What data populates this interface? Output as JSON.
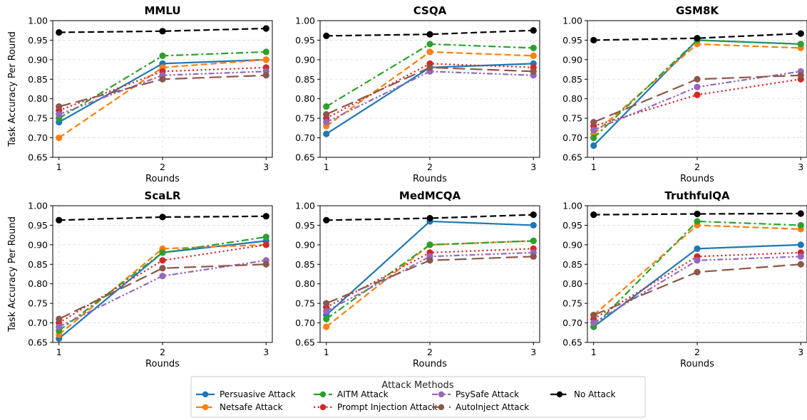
{
  "figure": {
    "legend_title": "Attack Methods",
    "legend_placement": "bottom-center"
  },
  "chart_data": [
    {
      "type": "line",
      "title": "MMLU",
      "xlabel": "Rounds",
      "ylabel": "Task Accuracy Per Round",
      "x": [
        1,
        2,
        3
      ],
      "ylim": [
        0.65,
        1.0
      ],
      "yticks": [
        "0.65",
        "0.70",
        "0.75",
        "0.80",
        "0.85",
        "0.90",
        "0.95",
        "1.00"
      ],
      "grid": true,
      "series": [
        {
          "name": "Persuasive Attack",
          "values": [
            0.74,
            0.89,
            0.9
          ]
        },
        {
          "name": "Netsafe Attack",
          "values": [
            0.7,
            0.88,
            0.9
          ]
        },
        {
          "name": "AITM Attack",
          "values": [
            0.75,
            0.91,
            0.92
          ]
        },
        {
          "name": "Prompt Injection Attack",
          "values": [
            0.77,
            0.87,
            0.88
          ]
        },
        {
          "name": "PsySafe Attack",
          "values": [
            0.76,
            0.86,
            0.87
          ]
        },
        {
          "name": "AutoInject Attack",
          "values": [
            0.78,
            0.85,
            0.86
          ]
        },
        {
          "name": "No Attack",
          "values": [
            0.97,
            0.973,
            0.98
          ]
        }
      ]
    },
    {
      "type": "line",
      "title": "CSQA",
      "xlabel": "Rounds",
      "ylabel": "",
      "x": [
        1,
        2,
        3
      ],
      "ylim": [
        0.65,
        1.0
      ],
      "yticks": [
        "0.65",
        "0.70",
        "0.75",
        "0.80",
        "0.85",
        "0.90",
        "0.95",
        "1.00"
      ],
      "grid": true,
      "series": [
        {
          "name": "Persuasive Attack",
          "values": [
            0.71,
            0.88,
            0.89
          ]
        },
        {
          "name": "Netsafe Attack",
          "values": [
            0.73,
            0.92,
            0.91
          ]
        },
        {
          "name": "AITM Attack",
          "values": [
            0.78,
            0.94,
            0.93
          ]
        },
        {
          "name": "Prompt Injection Attack",
          "values": [
            0.75,
            0.89,
            0.88
          ]
        },
        {
          "name": "PsySafe Attack",
          "values": [
            0.74,
            0.87,
            0.86
          ]
        },
        {
          "name": "AutoInject Attack",
          "values": [
            0.76,
            0.88,
            0.87
          ]
        },
        {
          "name": "No Attack",
          "values": [
            0.961,
            0.965,
            0.975
          ]
        }
      ]
    },
    {
      "type": "line",
      "title": "GSM8K",
      "xlabel": "Rounds",
      "ylabel": "",
      "x": [
        1,
        2,
        3
      ],
      "ylim": [
        0.65,
        1.0
      ],
      "yticks": [
        "0.65",
        "0.70",
        "0.75",
        "0.80",
        "0.85",
        "0.90",
        "0.95",
        "1.00"
      ],
      "grid": true,
      "series": [
        {
          "name": "Persuasive Attack",
          "values": [
            0.68,
            0.95,
            0.94
          ]
        },
        {
          "name": "Netsafe Attack",
          "values": [
            0.71,
            0.94,
            0.93
          ]
        },
        {
          "name": "AITM Attack",
          "values": [
            0.7,
            0.95,
            0.94
          ]
        },
        {
          "name": "Prompt Injection Attack",
          "values": [
            0.73,
            0.81,
            0.85
          ]
        },
        {
          "name": "PsySafe Attack",
          "values": [
            0.72,
            0.83,
            0.87
          ]
        },
        {
          "name": "AutoInject Attack",
          "values": [
            0.74,
            0.85,
            0.86
          ]
        },
        {
          "name": "No Attack",
          "values": [
            0.95,
            0.955,
            0.967
          ]
        }
      ]
    },
    {
      "type": "line",
      "title": "ScaLR",
      "xlabel": "Rounds",
      "ylabel": "Task Accuracy Per Round",
      "x": [
        1,
        2,
        3
      ],
      "ylim": [
        0.65,
        1.0
      ],
      "yticks": [
        "0.65",
        "0.70",
        "0.75",
        "0.80",
        "0.85",
        "0.90",
        "0.95",
        "1.00"
      ],
      "grid": true,
      "series": [
        {
          "name": "Persuasive Attack",
          "values": [
            0.66,
            0.88,
            0.91
          ]
        },
        {
          "name": "Netsafe Attack",
          "values": [
            0.67,
            0.89,
            0.9
          ]
        },
        {
          "name": "AITM Attack",
          "values": [
            0.68,
            0.88,
            0.92
          ]
        },
        {
          "name": "Prompt Injection Attack",
          "values": [
            0.7,
            0.86,
            0.9
          ]
        },
        {
          "name": "PsySafe Attack",
          "values": [
            0.69,
            0.82,
            0.86
          ]
        },
        {
          "name": "AutoInject Attack",
          "values": [
            0.71,
            0.84,
            0.85
          ]
        },
        {
          "name": "No Attack",
          "values": [
            0.963,
            0.971,
            0.973
          ]
        }
      ]
    },
    {
      "type": "line",
      "title": "MedMCQA",
      "xlabel": "Rounds",
      "ylabel": "",
      "x": [
        1,
        2,
        3
      ],
      "ylim": [
        0.65,
        1.0
      ],
      "yticks": [
        "0.65",
        "0.70",
        "0.75",
        "0.80",
        "0.85",
        "0.90",
        "0.95",
        "1.00"
      ],
      "grid": true,
      "series": [
        {
          "name": "Persuasive Attack",
          "values": [
            0.72,
            0.96,
            0.95
          ]
        },
        {
          "name": "Netsafe Attack",
          "values": [
            0.69,
            0.9,
            0.91
          ]
        },
        {
          "name": "AITM Attack",
          "values": [
            0.71,
            0.9,
            0.91
          ]
        },
        {
          "name": "Prompt Injection Attack",
          "values": [
            0.74,
            0.88,
            0.89
          ]
        },
        {
          "name": "PsySafe Attack",
          "values": [
            0.73,
            0.87,
            0.88
          ]
        },
        {
          "name": "AutoInject Attack",
          "values": [
            0.75,
            0.86,
            0.87
          ]
        },
        {
          "name": "No Attack",
          "values": [
            0.963,
            0.968,
            0.977
          ]
        }
      ]
    },
    {
      "type": "line",
      "title": "TruthfulQA",
      "xlabel": "Rounds",
      "ylabel": "",
      "x": [
        1,
        2,
        3
      ],
      "ylim": [
        0.65,
        1.0
      ],
      "yticks": [
        "0.65",
        "0.70",
        "0.75",
        "0.80",
        "0.85",
        "0.90",
        "0.95",
        "1.00"
      ],
      "grid": true,
      "series": [
        {
          "name": "Persuasive Attack",
          "values": [
            0.69,
            0.89,
            0.9
          ]
        },
        {
          "name": "Netsafe Attack",
          "values": [
            0.72,
            0.95,
            0.94
          ]
        },
        {
          "name": "AITM Attack",
          "values": [
            0.69,
            0.96,
            0.95
          ]
        },
        {
          "name": "Prompt Injection Attack",
          "values": [
            0.71,
            0.87,
            0.88
          ]
        },
        {
          "name": "PsySafe Attack",
          "values": [
            0.7,
            0.86,
            0.87
          ]
        },
        {
          "name": "AutoInject Attack",
          "values": [
            0.72,
            0.83,
            0.85
          ]
        },
        {
          "name": "No Attack",
          "values": [
            0.977,
            0.979,
            0.98
          ]
        }
      ]
    }
  ],
  "series_styles": [
    {
      "name": "Persuasive Attack",
      "color": "#1f77b4",
      "dash": "solid"
    },
    {
      "name": "Netsafe Attack",
      "color": "#ff7f0e",
      "dash": "dashed"
    },
    {
      "name": "AITM Attack",
      "color": "#2ca02c",
      "dash": "dashdot"
    },
    {
      "name": "Prompt Injection Attack",
      "color": "#d62728",
      "dash": "dotted"
    },
    {
      "name": "PsySafe Attack",
      "color": "#9467bd",
      "dash": "dashdotdot"
    },
    {
      "name": "AutoInject Attack",
      "color": "#8c564b",
      "dash": "longdash"
    },
    {
      "name": "No Attack",
      "color": "#000000",
      "dash": "dashed"
    }
  ]
}
